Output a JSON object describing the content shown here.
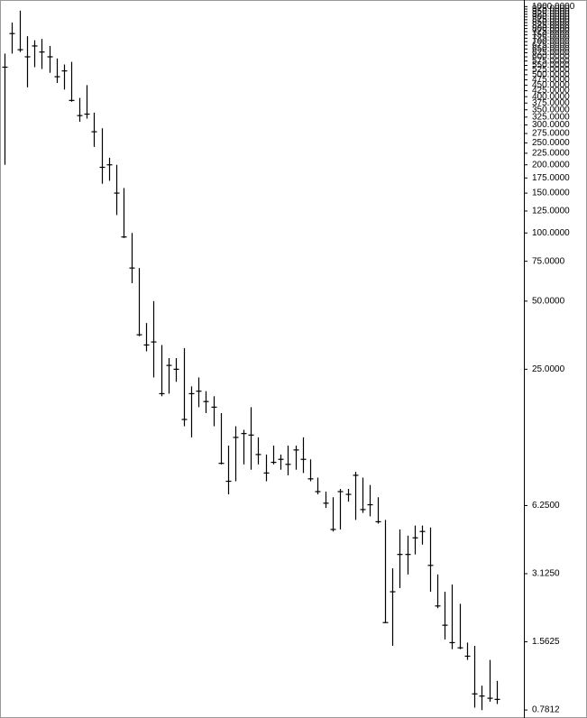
{
  "chart_data": {
    "type": "ohlc",
    "log_scale": true,
    "color": "#000000",
    "ylim": [
      0.74,
      1050
    ],
    "yticks": [
      {
        "value": 1000,
        "label": "1000.0000"
      },
      {
        "value": 975,
        "label": "975.0000"
      },
      {
        "value": 950,
        "label": "950.0000"
      },
      {
        "value": 925,
        "label": "925.0000"
      },
      {
        "value": 900,
        "label": "900.0000"
      },
      {
        "value": 875,
        "label": "875.0000"
      },
      {
        "value": 850,
        "label": "850.0000"
      },
      {
        "value": 825,
        "label": "825.0000"
      },
      {
        "value": 800,
        "label": "800.0000"
      },
      {
        "value": 775,
        "label": "775.0000"
      },
      {
        "value": 750,
        "label": "750.0000"
      },
      {
        "value": 725,
        "label": "725.0000"
      },
      {
        "value": 700,
        "label": "700.0000"
      },
      {
        "value": 675,
        "label": "675.0000"
      },
      {
        "value": 650,
        "label": "650.0000"
      },
      {
        "value": 625,
        "label": "625.0000"
      },
      {
        "value": 600,
        "label": "600.0000"
      },
      {
        "value": 575,
        "label": "575.0000"
      },
      {
        "value": 550,
        "label": "550.0000"
      },
      {
        "value": 525,
        "label": "525.0000"
      },
      {
        "value": 500,
        "label": "500.0000"
      },
      {
        "value": 475,
        "label": "475.0000"
      },
      {
        "value": 450,
        "label": "450.0000"
      },
      {
        "value": 425,
        "label": "425.0000"
      },
      {
        "value": 400,
        "label": "400.0000"
      },
      {
        "value": 375,
        "label": "375.0000"
      },
      {
        "value": 350,
        "label": "350.0000"
      },
      {
        "value": 325,
        "label": "325.0000"
      },
      {
        "value": 300,
        "label": "300.0000"
      },
      {
        "value": 275,
        "label": "275.0000"
      },
      {
        "value": 250,
        "label": "250.0000"
      },
      {
        "value": 225,
        "label": "225.0000"
      },
      {
        "value": 200,
        "label": "200.0000"
      },
      {
        "value": 175,
        "label": "175.0000"
      },
      {
        "value": 150,
        "label": "150.0000"
      },
      {
        "value": 125,
        "label": "125.0000"
      },
      {
        "value": 100,
        "label": "100.0000"
      },
      {
        "value": 75,
        "label": "75.0000"
      },
      {
        "value": 50,
        "label": "50.0000"
      },
      {
        "value": 25,
        "label": "25.0000"
      },
      {
        "value": 6.25,
        "label": "6.2500"
      },
      {
        "value": 3.125,
        "label": "3.1250"
      },
      {
        "value": 1.5625,
        "label": "1.5625"
      },
      {
        "value": 0.7812,
        "label": "0.7812"
      }
    ],
    "high": [
      620,
      850,
      960,
      740,
      710,
      720,
      670,
      590,
      555,
      570,
      395,
      450,
      340,
      290,
      215,
      200,
      158,
      100,
      70,
      40,
      50,
      32,
      28,
      28,
      31,
      21,
      23,
      20,
      19,
      16,
      11.5,
      14,
      13.5,
      17,
      12.5,
      10.5,
      11.5,
      10.5,
      11.5,
      11.5,
      12.5,
      10,
      8.3,
      7.2,
      6.8,
      7.4,
      7.4,
      8.8,
      8.3,
      7.7,
      6.8,
      5.4,
      3.3,
      4.9,
      4.6,
      5.1,
      5.1,
      5,
      3.1,
      2.6,
      2.8,
      2.3,
      1.55,
      1.5,
      1.0,
      1.3,
      1.05
    ],
    "low": [
      200,
      620,
      630,
      440,
      540,
      530,
      510,
      460,
      430,
      380,
      310,
      320,
      240,
      165,
      170,
      120,
      95,
      60,
      35,
      30,
      23,
      19,
      19.5,
      22,
      14,
      12.5,
      17,
      16,
      14,
      9.5,
      7,
      8,
      9.5,
      9,
      9.5,
      8,
      9.5,
      9,
      8.5,
      9,
      8.7,
      8,
      7,
      6.1,
      4.8,
      4.9,
      6.5,
      5.4,
      5.8,
      5.6,
      5.2,
      1.9,
      1.5,
      2.7,
      3.1,
      3.8,
      4.2,
      2.6,
      2.2,
      1.6,
      1.45,
      1.45,
      1.3,
      0.8,
      0.78,
      0.85,
      0.83
    ],
    "close": [
      540,
      760,
      645,
      600,
      670,
      630,
      600,
      490,
      520,
      385,
      330,
      335,
      280,
      195,
      200,
      150,
      96,
      70,
      35.5,
      32,
      33,
      19.5,
      26,
      25,
      15,
      19.5,
      20,
      18,
      17,
      9.6,
      8,
      12.5,
      13,
      12.8,
      10.5,
      8.7,
      9.7,
      10,
      9.5,
      11,
      10,
      8.2,
      7.2,
      6.4,
      4.9,
      7.2,
      7,
      8.5,
      6,
      6.3,
      5.3,
      1.9,
      2.6,
      3.8,
      3.8,
      4.5,
      4.8,
      3.4,
      2.25,
      1.85,
      1.55,
      1.47,
      1.35,
      0.92,
      0.9,
      0.88,
      0.87
    ]
  }
}
